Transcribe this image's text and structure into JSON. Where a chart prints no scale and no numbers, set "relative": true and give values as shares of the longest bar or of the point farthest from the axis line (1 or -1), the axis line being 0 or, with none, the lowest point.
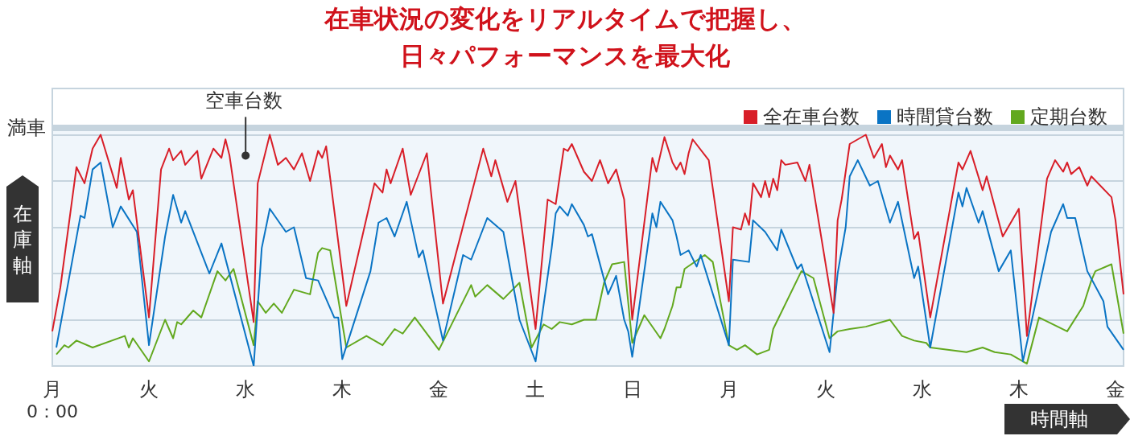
{
  "chart_data": {
    "type": "line",
    "title": "在車状況の変化をリアルタイムで把握し、日々パフォーマンスを最大化",
    "xlabel": "時間軸",
    "ylabel": "在庫軸",
    "relative": true,
    "categories": [
      "月",
      null,
      null,
      null,
      null,
      null,
      null,
      null,
      null,
      null,
      null,
      null,
      null,
      null,
      null,
      null,
      null,
      null,
      null,
      null,
      null,
      null,
      null,
      null,
      "火",
      null,
      null,
      null,
      null,
      null,
      null,
      null,
      null,
      null,
      null,
      null,
      null,
      null,
      null,
      null,
      null,
      null,
      null,
      null,
      null,
      null,
      null,
      null,
      "水",
      null,
      null,
      null,
      null,
      null,
      null,
      null,
      null,
      null,
      null,
      null,
      null,
      null,
      null,
      null,
      null,
      null,
      null,
      null,
      null,
      null,
      null,
      null,
      "木",
      null,
      null,
      null,
      null,
      null,
      null,
      null,
      null,
      null,
      null,
      null,
      null,
      null,
      null,
      null,
      null,
      null,
      null,
      null,
      null,
      null,
      null,
      null,
      "金",
      null,
      null,
      null,
      null,
      null,
      null,
      null,
      null,
      null,
      null,
      null,
      null,
      null,
      null,
      null,
      null,
      null,
      null,
      null,
      null,
      null,
      null,
      null,
      "土",
      null,
      null,
      null,
      null,
      null,
      null,
      null,
      null,
      null,
      null,
      null,
      null,
      null,
      null,
      null,
      null,
      null,
      null,
      null,
      null,
      null,
      null,
      null,
      "日",
      null,
      null,
      null,
      null,
      null,
      null,
      null,
      null,
      null,
      null,
      null,
      null,
      null,
      null,
      null,
      null,
      null,
      null,
      null,
      null,
      null,
      null,
      null,
      "月",
      null,
      null,
      null,
      null,
      null,
      null,
      null,
      null,
      null,
      null,
      null,
      null,
      null,
      null,
      null,
      null,
      null,
      null,
      null,
      null,
      null,
      null,
      null,
      "火",
      null,
      null,
      null,
      null,
      null,
      null,
      null,
      null,
      null,
      null,
      null,
      null,
      null,
      null,
      null,
      null,
      null,
      null,
      null,
      null,
      null,
      null,
      null,
      "水",
      null,
      null,
      null,
      null,
      null,
      null,
      null,
      null,
      null,
      null,
      null,
      null,
      null,
      null,
      null,
      null,
      null,
      null,
      null,
      null,
      null,
      null,
      null,
      "木",
      null,
      null,
      null,
      null,
      null,
      null,
      null,
      null,
      null,
      null,
      null,
      null,
      null,
      null,
      null,
      null,
      null,
      null,
      null,
      null,
      null,
      null,
      null,
      "金",
      null,
      null
    ],
    "grid": "y",
    "legend": "top right",
    "marker": "none",
    "line_style": "solid",
    "ref_lines": [
      {
        "axis": "y",
        "value": 1.03,
        "label": "満車",
        "color": "#c6d4de"
      }
    ],
    "bands": [
      {
        "axis": "y",
        "from": 0,
        "to": 1.03,
        "color": "#f0f6fb"
      }
    ],
    "annotations": [
      {
        "text": "空車台数",
        "x": "水",
        "y": 0.91
      },
      "0：00"
    ],
    "series": [
      {
        "name": "全在車台数",
        "color": "#d81e28",
        "values": [
          0.15,
          null,
          0.34,
          null,
          null,
          null,
          0.86,
          null,
          0.79,
          null,
          0.94,
          null,
          1,
          null,
          null,
          null,
          0.77,
          0.9,
          null,
          0.72,
          0.76,
          null,
          null,
          null,
          0.21,
          null,
          null,
          0.85,
          null,
          0.94,
          0.89,
          null,
          0.93,
          0.87,
          null,
          null,
          0.93,
          0.81,
          null,
          null,
          0.94,
          null,
          0.9,
          0.98,
          0.91,
          null,
          null,
          null,
          null,
          null,
          0.19,
          0.79,
          null,
          null,
          1,
          null,
          0.87,
          null,
          0.9,
          null,
          0.85,
          null,
          0.92,
          null,
          0.8,
          null,
          0.93,
          0.9,
          0.95,
          null,
          null,
          null,
          null,
          0.26,
          null,
          null,
          null,
          null,
          null,
          null,
          0.79,
          null,
          0.75,
          0.85,
          0.79,
          null,
          null,
          0.94,
          null,
          0.74,
          null,
          null,
          null,
          0.92,
          null,
          null,
          null,
          0.27,
          null,
          null,
          null,
          null,
          null,
          null,
          null,
          null,
          null,
          0.94,
          null,
          0.82,
          0.89,
          null,
          null,
          0.71,
          null,
          0.8,
          null,
          null,
          null,
          null,
          0.16,
          null,
          null,
          0.72,
          null,
          0.7,
          null,
          0.94,
          0.93,
          0.96,
          null,
          null,
          0.84,
          null,
          0.8,
          null,
          0.89,
          null,
          0.79,
          null,
          0.85,
          null,
          0.72,
          null,
          0.2,
          null,
          null,
          null,
          null,
          0.9,
          0.84,
          null,
          0.99,
          null,
          0.88,
          0.85,
          0.88,
          0.83,
          0.92,
          0.98,
          null,
          null,
          null,
          0.89,
          null,
          null,
          null,
          null,
          0.28,
          0.6,
          null,
          0.59,
          0.66,
          0.61,
          0.79,
          null,
          0.73,
          0.8,
          0.73,
          0.81,
          0.76,
          0.89,
          0.87,
          null,
          null,
          0.88,
          null,
          0.8,
          0.87,
          null,
          null,
          null,
          null,
          null,
          0.23,
          0.63,
          0.72,
          null,
          0.96,
          null,
          null,
          null,
          1.0,
          null,
          0.9,
          null,
          0.96,
          0.86,
          0.91,
          null,
          0.85,
          0.89,
          null,
          null,
          0.55,
          0.58,
          null,
          null,
          0.21,
          null,
          null,
          null,
          null,
          null,
          null,
          0.88,
          0.85,
          null,
          0.93,
          null,
          null,
          0.76,
          0.82,
          null,
          null,
          null,
          0.56,
          null,
          null,
          null,
          0.68,
          null,
          0.13,
          null,
          null,
          null,
          null,
          0.81,
          null,
          0.89,
          null,
          0.84,
          0.88,
          0.83,
          null,
          0.86,
          null,
          0.78,
          0.82,
          null,
          null,
          null,
          null,
          0.73,
          0.63,
          null,
          0.31
        ]
      },
      {
        "name": "時間貸台数",
        "color": "#0a74c4",
        "values": [
          null,
          0.08,
          null,
          0.27,
          null,
          null,
          null,
          0.65,
          0.64,
          null,
          0.85,
          null,
          0.88,
          null,
          null,
          0.6,
          null,
          0.69,
          null,
          null,
          null,
          0.58,
          null,
          null,
          0.09,
          null,
          null,
          null,
          0.56,
          null,
          0.74,
          null,
          0.62,
          0.67,
          null,
          null,
          null,
          null,
          null,
          0.4,
          null,
          null,
          0.53,
          null,
          null,
          null,
          null,
          null,
          null,
          null,
          0,
          null,
          0.51,
          null,
          0.68,
          null,
          null,
          null,
          0.58,
          null,
          0.6,
          null,
          null,
          0.38,
          null,
          null,
          0.37,
          null,
          null,
          null,
          0.21,
          0.21,
          0.03,
          null,
          null,
          null,
          null,
          null,
          null,
          0.41,
          null,
          0.62,
          null,
          0.64,
          null,
          0.56,
          null,
          null,
          0.71,
          null,
          null,
          0.47,
          0.5,
          null,
          null,
          null,
          null,
          0.11,
          null,
          null,
          null,
          null,
          0.48,
          null,
          0.46,
          null,
          null,
          null,
          0.64,
          null,
          null,
          null,
          0.58,
          null,
          null,
          null,
          0.2,
          null,
          null,
          null,
          0.02,
          null,
          null,
          null,
          0.51,
          0.66,
          0.69,
          null,
          0.65,
          0.7,
          null,
          null,
          0.61,
          0.56,
          0.57,
          null,
          null,
          null,
          0.31,
          null,
          0.39,
          null,
          0.2,
          0.15,
          0.04,
          null,
          null,
          null,
          null,
          0.66,
          0.6,
          0.71,
          null,
          null,
          0.63,
          0.56,
          0.48,
          null,
          0.5,
          null,
          0.43,
          0.48,
          null,
          null,
          null,
          null,
          null,
          null,
          0.09,
          0.46,
          null,
          null,
          null,
          0.45,
          0.63,
          null,
          null,
          0.58,
          null,
          null,
          0.5,
          0.59,
          null,
          null,
          null,
          0.42,
          0.44,
          null,
          null,
          null,
          null,
          null,
          null,
          0.06,
          null,
          0.4,
          null,
          0.6,
          0.82,
          null,
          0.89,
          null,
          null,
          0.78,
          null,
          0.8,
          null,
          null,
          0.62,
          null,
          0.71,
          null,
          null,
          null,
          0.38,
          0.43,
          null,
          null,
          0.08,
          null,
          null,
          null,
          null,
          null,
          null,
          0.75,
          0.69,
          0.77,
          null,
          null,
          0.62,
          0.67,
          null,
          null,
          null,
          0.41,
          null,
          null,
          0.5,
          null,
          null,
          0.02,
          null,
          null,
          null,
          null,
          null,
          null,
          0.58,
          null,
          null,
          0.7,
          0.64,
          null,
          0.64,
          null,
          null,
          0.41,
          null,
          null,
          null,
          0.28,
          0.17,
          null,
          null,
          null,
          0.07
        ]
      },
      {
        "name": "定期台数",
        "color": "#62a81e",
        "values": [
          null,
          0.05,
          null,
          0.09,
          0.08,
          null,
          0.11,
          null,
          null,
          null,
          0.08,
          null,
          null,
          null,
          null,
          null,
          null,
          null,
          0.13,
          0.08,
          0.12,
          null,
          null,
          null,
          0.02,
          null,
          null,
          null,
          0.2,
          null,
          0.12,
          0.19,
          0.18,
          null,
          null,
          0.24,
          null,
          0.21,
          null,
          null,
          null,
          0.41,
          null,
          0.37,
          null,
          0.42,
          null,
          null,
          null,
          null,
          0.09,
          0.28,
          null,
          0.23,
          null,
          0.27,
          null,
          0.23,
          null,
          null,
          0.33,
          null,
          null,
          null,
          0.31,
          null,
          0.49,
          0.51,
          null,
          0.5,
          null,
          null,
          null,
          0.08,
          null,
          null,
          null,
          null,
          0.13,
          null,
          null,
          null,
          0.09,
          null,
          null,
          0.16,
          null,
          0.14,
          null,
          null,
          0.21,
          null,
          null,
          null,
          null,
          null,
          0.07,
          null,
          null,
          null,
          null,
          null,
          null,
          null,
          0.35,
          0.3,
          null,
          null,
          0.35,
          null,
          null,
          null,
          0.29,
          null,
          null,
          null,
          0.36,
          null,
          null,
          0.08,
          null,
          null,
          0.18,
          null,
          0.16,
          null,
          0.19,
          null,
          null,
          0.18,
          null,
          null,
          0.2,
          null,
          null,
          0.2,
          null,
          0.36,
          null,
          0.44,
          null,
          null,
          0.45,
          null,
          0.1,
          null,
          null,
          0.22,
          null,
          null,
          null,
          0.12,
          0.16,
          null,
          0.26,
          0.34,
          0.34,
          0.42,
          null,
          null,
          null,
          null,
          0.48,
          null,
          0.45,
          null,
          null,
          null,
          0.09,
          null,
          0.07,
          null,
          0.09,
          null,
          null,
          0.05,
          null,
          null,
          0.07,
          0.16,
          null,
          null,
          null,
          null,
          null,
          null,
          0.41,
          null,
          null,
          0.38,
          null,
          null,
          null,
          0.12,
          null,
          0.15,
          null,
          null,
          0.16,
          null,
          null,
          null,
          0.17,
          null,
          null,
          null,
          null,
          null,
          0.2,
          null,
          null,
          0.13,
          null,
          null,
          0.11,
          null,
          null,
          0.1,
          0.08,
          null,
          null,
          null,
          null,
          null,
          null,
          null,
          null,
          0.06,
          null,
          null,
          null,
          0.08,
          null,
          null,
          0.06,
          null,
          null,
          null,
          0.05,
          null,
          null,
          null,
          0.01,
          null,
          null,
          0.21,
          null,
          null,
          null,
          null,
          null,
          null,
          0.15,
          null,
          null,
          null,
          0.26,
          null,
          0.37,
          0.41,
          null,
          null,
          null,
          0.44,
          null,
          null,
          0.14
        ]
      }
    ]
  }
}
